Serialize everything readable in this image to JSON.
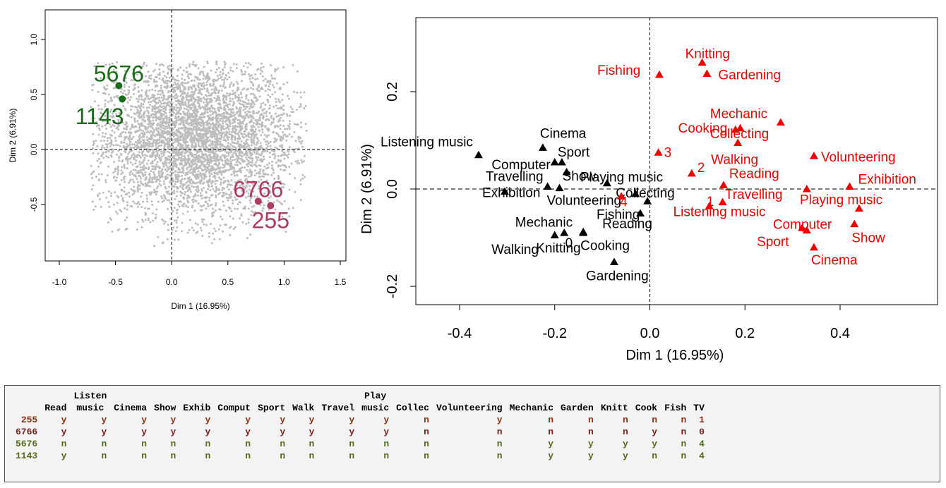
{
  "chart_data": [
    {
      "type": "scatter",
      "panel": "left",
      "xlabel": "Dim 1 (16.95%)",
      "ylabel": "Dim 2 (6.91%)",
      "xlim": [
        -1.0,
        1.5
      ],
      "ylim": [
        -1.0,
        1.0
      ],
      "xticks": [
        "-1.0",
        "-0.5",
        "0.0",
        "0.5",
        "1.0",
        "1.5"
      ],
      "yticks": [
        "-0.5",
        "0.0",
        "0.5",
        "1.0"
      ],
      "reference_lines": {
        "x": 0,
        "y": 0
      },
      "cloud": {
        "color": "#bdbdbd",
        "center": [
          0.2,
          0.1
        ],
        "spread": [
          0.45,
          0.35
        ],
        "x_range": [
          -0.72,
          1.2
        ],
        "y_range": [
          -0.88,
          0.8
        ],
        "count": 4500
      },
      "highlighted": [
        {
          "label": "5676",
          "x": -0.47,
          "y": 0.58,
          "color": "#1a6b1a"
        },
        {
          "label": "1143",
          "x": -0.44,
          "y": 0.46,
          "color": "#1a6b1a"
        },
        {
          "label": "6766",
          "x": 0.77,
          "y": -0.47,
          "color": "#b03a60"
        },
        {
          "label": "255",
          "x": 0.88,
          "y": -0.51,
          "color": "#b03a60"
        }
      ]
    },
    {
      "type": "scatter",
      "panel": "right",
      "xlabel": "Dim 1 (16.95%)",
      "ylabel": "Dim 2 (6.91%)",
      "xlim": [
        -0.48,
        0.59
      ],
      "ylim": [
        -0.24,
        0.355
      ],
      "xticks": [
        -0.4,
        -0.2,
        0.0,
        0.2,
        0.4
      ],
      "xtick_labels": [
        "-0.4",
        "-0.2",
        "0.0",
        "0.2",
        "0.4"
      ],
      "yticks": [
        -0.2,
        0.0,
        0.2
      ],
      "ytick_labels": [
        "-0.2",
        "0.0",
        "0.2"
      ],
      "reference_lines": {
        "x": 0,
        "y": 0
      },
      "series": [
        {
          "name": "",
          "color": "#000000",
          "points": [
            {
              "label": "Listening music",
              "x": -0.36,
              "y": 0.07
            },
            {
              "label": "Cinema",
              "x": -0.225,
              "y": 0.085
            },
            {
              "label": "Computer",
              "x": -0.2,
              "y": 0.055
            },
            {
              "label": "Sport",
              "x": -0.185,
              "y": 0.055
            },
            {
              "label": "Show",
              "x": -0.175,
              "y": 0.035
            },
            {
              "label": "Travelling",
              "x": -0.215,
              "y": 0.005
            },
            {
              "label": "Playing music",
              "x": -0.09,
              "y": 0.012
            },
            {
              "label": "Exhibition",
              "x": -0.305,
              "y": -0.005
            },
            {
              "label": "Volunteering",
              "x": -0.19,
              "y": 0.002
            },
            {
              "label": "Collecting",
              "x": -0.03,
              "y": -0.01
            },
            {
              "label": "Reading",
              "x": -0.005,
              "y": -0.025
            },
            {
              "label": "Fishing",
              "x": -0.02,
              "y": -0.05
            },
            {
              "label": "Mechanic",
              "x": -0.2,
              "y": -0.095
            },
            {
              "label": "Knitting",
              "x": -0.18,
              "y": -0.09
            },
            {
              "label": "Walking",
              "x": -0.14,
              "y": -0.09
            },
            {
              "label": "Cooking",
              "x": -0.14,
              "y": -0.088
            },
            {
              "label": "Gardening",
              "x": -0.075,
              "y": -0.15
            },
            {
              "label": "0",
              "x": -0.17,
              "y": -0.12
            }
          ]
        },
        {
          "name": "",
          "color": "#ee0000",
          "points": [
            {
              "label": "Knitting",
              "x": 0.11,
              "y": 0.26
            },
            {
              "label": "Fishing",
              "x": 0.02,
              "y": 0.235
            },
            {
              "label": "Gardening",
              "x": 0.12,
              "y": 0.237
            },
            {
              "label": "Mechanic",
              "x": 0.275,
              "y": 0.137
            },
            {
              "label": "Cooking",
              "x": 0.19,
              "y": 0.125
            },
            {
              "label": "Collecting",
              "x": 0.18,
              "y": 0.122
            },
            {
              "label": "Walking",
              "x": 0.185,
              "y": 0.095
            },
            {
              "label": "Volunteering",
              "x": 0.345,
              "y": 0.068
            },
            {
              "label": "3",
              "x": 0.018,
              "y": 0.075
            },
            {
              "label": "2",
              "x": 0.088,
              "y": 0.032
            },
            {
              "label": "Reading",
              "x": 0.155,
              "y": 0.008
            },
            {
              "label": "Exhibition",
              "x": 0.42,
              "y": 0.005
            },
            {
              "label": "Travelling",
              "x": 0.33,
              "y": 0.0
            },
            {
              "label": "1",
              "x": 0.125,
              "y": -0.035
            },
            {
              "label": "Listening music",
              "x": 0.153,
              "y": -0.027
            },
            {
              "label": "Playing music",
              "x": 0.44,
              "y": -0.04
            },
            {
              "label": "4",
              "x": -0.06,
              "y": -0.015
            },
            {
              "label": "Computer",
              "x": 0.33,
              "y": -0.085
            },
            {
              "label": "Show",
              "x": 0.43,
              "y": -0.072
            },
            {
              "label": "Sport",
              "x": 0.32,
              "y": -0.08
            },
            {
              "label": "Cinema",
              "x": 0.345,
              "y": -0.12
            }
          ]
        }
      ]
    }
  ],
  "table": {
    "headers_top": [
      "",
      "",
      "Listen",
      "",
      "",
      "",
      "",
      "",
      "",
      "",
      "Play",
      "",
      "",
      "",
      "",
      "",
      "",
      "",
      ""
    ],
    "headers": [
      "",
      "Read",
      "music",
      "Cinema",
      "Show",
      "Exhib",
      "Comput",
      "Sport",
      "Walk",
      "Travel",
      "music",
      "Collec",
      "Volunteering",
      "Mechanic",
      "Garden",
      "Knitt",
      "Cook",
      "Fish",
      "TV"
    ],
    "rows": [
      {
        "id": "255",
        "cls": "c255",
        "values": [
          "y",
          "y",
          "y",
          "y",
          "y",
          "y",
          "y",
          "y",
          "y",
          "y",
          "n",
          "y",
          "n",
          "n",
          "n",
          "n",
          "n",
          "1"
        ]
      },
      {
        "id": "6766",
        "cls": "c6766",
        "values": [
          "y",
          "y",
          "y",
          "y",
          "y",
          "y",
          "y",
          "y",
          "y",
          "y",
          "n",
          "n",
          "n",
          "n",
          "n",
          "y",
          "n",
          "0"
        ]
      },
      {
        "id": "5676",
        "cls": "c5676",
        "values": [
          "n",
          "n",
          "n",
          "n",
          "n",
          "n",
          "n",
          "n",
          "n",
          "n",
          "n",
          "n",
          "y",
          "y",
          "y",
          "y",
          "n",
          "4"
        ]
      },
      {
        "id": "1143",
        "cls": "c1143",
        "values": [
          "y",
          "n",
          "n",
          "n",
          "n",
          "n",
          "n",
          "n",
          "n",
          "n",
          "n",
          "n",
          "y",
          "y",
          "y",
          "n",
          "n",
          "4"
        ]
      }
    ]
  }
}
